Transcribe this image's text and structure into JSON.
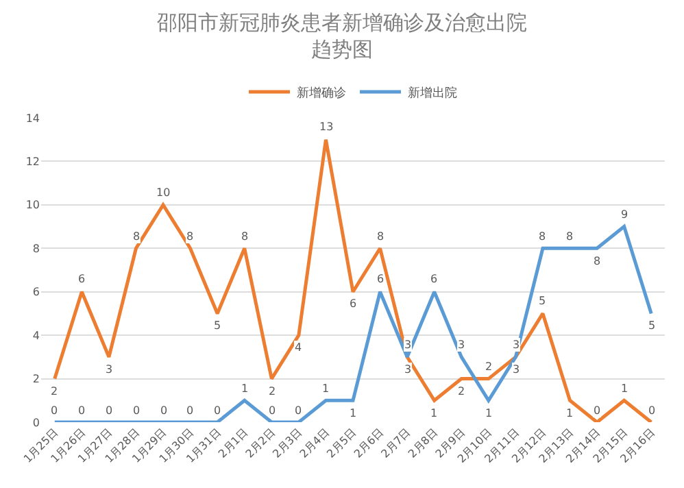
{
  "chart_data": {
    "type": "line",
    "title": "邵阳市新冠肺炎患者新增确诊及治愈出院趋势图",
    "categories": [
      "1月25日",
      "1月26日",
      "1月27日",
      "1月28日",
      "1月29日",
      "1月30日",
      "1月31日",
      "2月1日",
      "2月2日",
      "2月3日",
      "2月4日",
      "2月5日",
      "2月6日",
      "2月7日",
      "2月8日",
      "2月9日",
      "2月10日",
      "2月11日",
      "2月12日",
      "2月13日",
      "2月14日",
      "2月15日",
      "2月16日"
    ],
    "series": [
      {
        "name": "新增确诊",
        "color": "#ed7d31",
        "values": [
          2,
          6,
          3,
          8,
          10,
          8,
          5,
          8,
          2,
          4,
          13,
          6,
          8,
          3,
          1,
          2,
          2,
          3,
          5,
          1,
          0,
          1,
          0
        ]
      },
      {
        "name": "新增出院",
        "color": "#5b9bd5",
        "values": [
          0,
          0,
          0,
          0,
          0,
          0,
          0,
          1,
          0,
          0,
          1,
          1,
          6,
          3,
          6,
          3,
          1,
          3,
          8,
          8,
          8,
          9,
          5
        ]
      }
    ],
    "ylim": [
      0,
      14
    ],
    "yticks": [
      0,
      2,
      4,
      6,
      8,
      10,
      12,
      14
    ],
    "grid": "y",
    "legend": "top",
    "data_labels": true,
    "marker": "none",
    "line_style": "solid"
  }
}
